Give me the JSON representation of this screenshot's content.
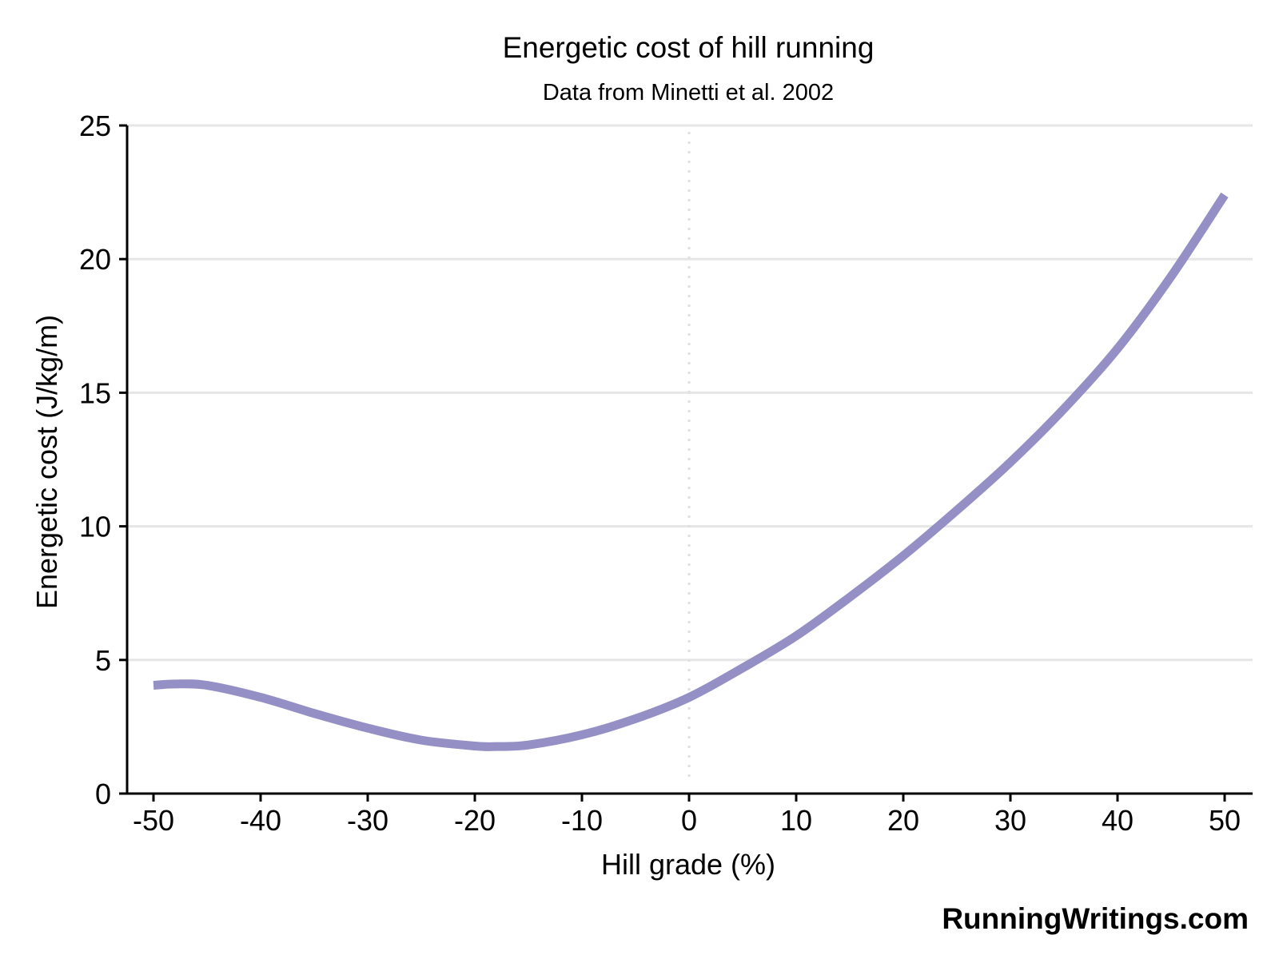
{
  "chart_data": {
    "type": "line",
    "title": "Energetic cost of hill running",
    "subtitle": "Data from Minetti et al. 2002",
    "xlabel": "Hill grade (%)",
    "ylabel": "Energetic cost (J/kg/m)",
    "xlim": [
      -50,
      50
    ],
    "ylim": [
      0,
      25
    ],
    "x_ticks": [
      -50,
      -40,
      -30,
      -20,
      -10,
      0,
      10,
      20,
      30,
      40,
      50
    ],
    "y_ticks": [
      0,
      5,
      10,
      15,
      20,
      25
    ],
    "grid": "horizontal",
    "reference_line_x": 0,
    "series": [
      {
        "color": "#9490c5",
        "x": [
          -50,
          -48,
          -45,
          -40,
          -35,
          -30,
          -25,
          -20,
          -18,
          -15,
          -10,
          -5,
          0,
          5,
          10,
          15,
          20,
          25,
          30,
          35,
          40,
          45,
          50
        ],
        "values": [
          4.05,
          4.1,
          4.05,
          3.6,
          3.0,
          2.45,
          2.0,
          1.78,
          1.76,
          1.82,
          2.2,
          2.8,
          3.6,
          4.7,
          5.9,
          7.35,
          8.9,
          10.6,
          12.4,
          14.4,
          16.65,
          19.35,
          22.4
        ]
      }
    ],
    "credit": "RunningWritings.com"
  }
}
